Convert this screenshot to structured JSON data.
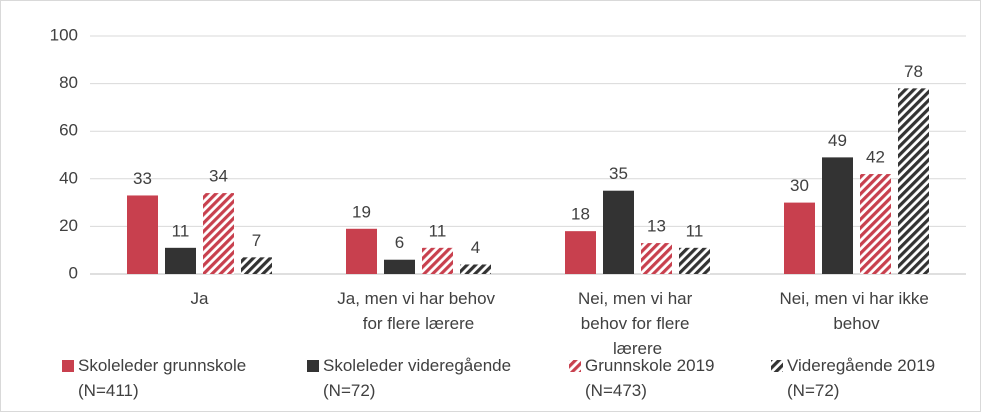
{
  "chart_data": {
    "type": "bar",
    "categories": [
      "Ja",
      "Ja, men vi har behov for flere lærere",
      "Nei, men vi har behov for flere lærere",
      "Nei, men vi har ikke behov"
    ],
    "series": [
      {
        "name": "Skoleleder grunnskole (N=411)",
        "color": "#c8404e",
        "hatch": false,
        "values": [
          33,
          19,
          18,
          30
        ]
      },
      {
        "name": "Skoleleder videregående (N=72)",
        "color": "#333333",
        "hatch": false,
        "values": [
          11,
          6,
          35,
          49
        ]
      },
      {
        "name": "Grunnskole 2019 (N=473)",
        "color": "#c8404e",
        "hatch": true,
        "values": [
          34,
          11,
          13,
          42
        ]
      },
      {
        "name": "Videregående 2019 (N=72)",
        "color": "#333333",
        "hatch": true,
        "values": [
          7,
          4,
          11,
          78
        ]
      }
    ],
    "ylim": [
      0,
      100
    ],
    "yticks": [
      0,
      20,
      40,
      60,
      80,
      100
    ],
    "grid": true,
    "legend": "bottom"
  }
}
